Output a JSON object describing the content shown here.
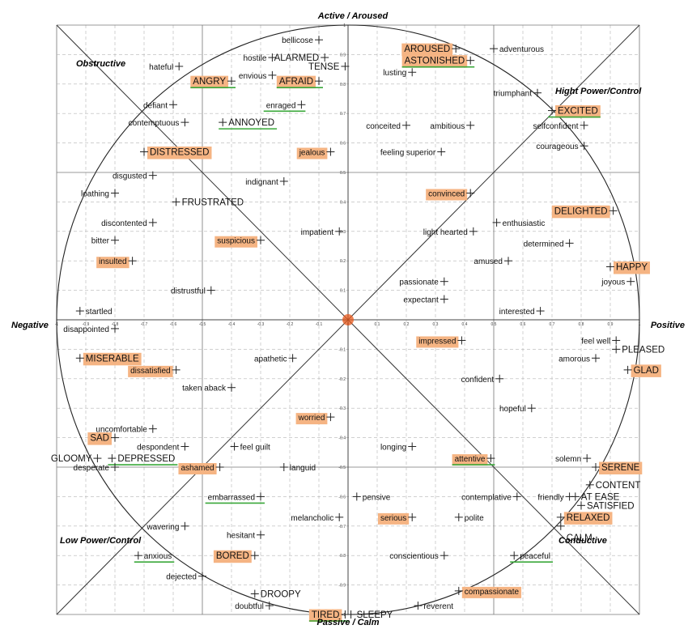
{
  "axes": {
    "top": "Active / Aroused",
    "bottom": "Passive / Calm",
    "left": "Negative",
    "right": "Positive"
  },
  "regions": {
    "top_left": "Obstructive",
    "top_right": "Hight Power/Control",
    "bottom_left": "Low Power/Control",
    "bottom_right": "Conductive"
  },
  "x_ticks": [
    "-1",
    "-0.9",
    "-0.8",
    "-0.7",
    "-0.6",
    "-0.5",
    "-0.4",
    "-0.3",
    "-0.2",
    "-0.1",
    "0",
    "0.1",
    "0.2",
    "0.3",
    "0.4",
    "0.5",
    "0.6",
    "0.7",
    "0.8",
    "0.9",
    "1"
  ],
  "y_ticks": [
    "1",
    "0.9",
    "0.8",
    "0.7",
    "0.6",
    "0.5",
    "0.4",
    "0.3",
    "0.2",
    "0.1",
    "0",
    "-0.1",
    "-0.2",
    "-0.3",
    "-0.4",
    "-0.5",
    "-0.6",
    "-0.7",
    "-0.8",
    "-0.9",
    "-1"
  ],
  "colors": {
    "highlight": "#f5b483",
    "underline": "#3aa83a",
    "grid": "#888888",
    "axis": "#444444",
    "center": "#e85a1c"
  },
  "chart_data": {
    "type": "scatter",
    "xlim": [
      -1,
      1
    ],
    "ylim": [
      -1,
      1
    ],
    "points": [
      {
        "label": "bellicose",
        "x": -0.1,
        "y": 0.95,
        "side": "left",
        "style": "small"
      },
      {
        "label": "hostile",
        "x": -0.26,
        "y": 0.89,
        "side": "left",
        "style": "small"
      },
      {
        "label": "ALARMED",
        "x": -0.08,
        "y": 0.89,
        "side": "left",
        "style": "caps"
      },
      {
        "label": "TENSE",
        "x": -0.01,
        "y": 0.86,
        "side": "left",
        "style": "caps"
      },
      {
        "label": "envious",
        "x": -0.26,
        "y": 0.83,
        "side": "left",
        "style": "small"
      },
      {
        "label": "hateful",
        "x": -0.58,
        "y": 0.86,
        "side": "left",
        "style": "small"
      },
      {
        "label": "ANGRY",
        "x": -0.4,
        "y": 0.81,
        "side": "left",
        "style": "caps",
        "hl": true,
        "ul": true
      },
      {
        "label": "AFRAID",
        "x": -0.1,
        "y": 0.81,
        "side": "left",
        "style": "caps",
        "hl": true,
        "ul": true
      },
      {
        "label": "defiant",
        "x": -0.6,
        "y": 0.73,
        "side": "left",
        "style": "small"
      },
      {
        "label": "enraged",
        "x": -0.16,
        "y": 0.73,
        "side": "left",
        "style": "small",
        "ul": true
      },
      {
        "label": "contemptuous",
        "x": -0.56,
        "y": 0.67,
        "side": "left",
        "style": "small"
      },
      {
        "label": "ANNOYED",
        "x": -0.43,
        "y": 0.67,
        "side": "right",
        "style": "caps",
        "ul": true
      },
      {
        "label": "DISTRESSED",
        "x": -0.7,
        "y": 0.57,
        "side": "right",
        "style": "caps",
        "hl": true
      },
      {
        "label": "jealous",
        "x": -0.06,
        "y": 0.57,
        "side": "left",
        "style": "small",
        "hl": true
      },
      {
        "label": "disgusted",
        "x": -0.67,
        "y": 0.49,
        "side": "left",
        "style": "small"
      },
      {
        "label": "indignant",
        "x": -0.22,
        "y": 0.47,
        "side": "left",
        "style": "small"
      },
      {
        "label": "loathing",
        "x": -0.8,
        "y": 0.43,
        "side": "left",
        "style": "small"
      },
      {
        "label": "FRUSTRATED",
        "x": -0.59,
        "y": 0.4,
        "side": "right",
        "style": "caps"
      },
      {
        "label": "discontented",
        "x": -0.67,
        "y": 0.33,
        "side": "left",
        "style": "small"
      },
      {
        "label": "bitter",
        "x": -0.8,
        "y": 0.27,
        "side": "left",
        "style": "small"
      },
      {
        "label": "suspicious",
        "x": -0.3,
        "y": 0.27,
        "side": "left",
        "style": "small",
        "hl": true
      },
      {
        "label": "impatient",
        "x": -0.03,
        "y": 0.3,
        "side": "left",
        "style": "small"
      },
      {
        "label": "insulted",
        "x": -0.74,
        "y": 0.2,
        "side": "left",
        "style": "small",
        "hl": true
      },
      {
        "label": "distrustful",
        "x": -0.47,
        "y": 0.1,
        "side": "left",
        "style": "small"
      },
      {
        "label": "startled",
        "x": -0.92,
        "y": 0.03,
        "side": "right",
        "style": "small"
      },
      {
        "label": "disappointed",
        "x": -0.8,
        "y": -0.03,
        "side": "left",
        "style": "small"
      },
      {
        "label": "MISERABLE",
        "x": -0.92,
        "y": -0.13,
        "side": "right",
        "style": "caps",
        "hl": true
      },
      {
        "label": "dissatisfied",
        "x": -0.59,
        "y": -0.17,
        "side": "left",
        "style": "small",
        "hl": true
      },
      {
        "label": "apathetic",
        "x": -0.19,
        "y": -0.13,
        "side": "left",
        "style": "small"
      },
      {
        "label": "taken aback",
        "x": -0.4,
        "y": -0.23,
        "side": "left",
        "style": "small"
      },
      {
        "label": "worried",
        "x": -0.06,
        "y": -0.33,
        "side": "left",
        "style": "small",
        "hl": true
      },
      {
        "label": "uncomfortable",
        "x": -0.67,
        "y": -0.37,
        "side": "left",
        "style": "small"
      },
      {
        "label": "SAD",
        "x": -0.8,
        "y": -0.4,
        "side": "left",
        "style": "caps",
        "hl": true
      },
      {
        "label": "despondent",
        "x": -0.56,
        "y": -0.43,
        "side": "left",
        "style": "small"
      },
      {
        "label": "feel guilt",
        "x": -0.39,
        "y": -0.43,
        "side": "right",
        "style": "small"
      },
      {
        "label": "GLOOMY",
        "x": -0.86,
        "y": -0.47,
        "side": "left",
        "style": "caps"
      },
      {
        "label": "DEPRESSED",
        "x": -0.81,
        "y": -0.47,
        "side": "right",
        "style": "caps",
        "ul": true
      },
      {
        "label": "desperate",
        "x": -0.8,
        "y": -0.5,
        "side": "left",
        "style": "small"
      },
      {
        "label": "ashamed",
        "x": -0.44,
        "y": -0.5,
        "side": "left",
        "style": "small",
        "hl": true
      },
      {
        "label": "languid",
        "x": -0.22,
        "y": -0.5,
        "side": "right",
        "style": "small"
      },
      {
        "label": "embarrassed",
        "x": -0.3,
        "y": -0.6,
        "side": "left",
        "style": "small",
        "ul": true
      },
      {
        "label": "melancholic",
        "x": -0.03,
        "y": -0.67,
        "side": "left",
        "style": "small"
      },
      {
        "label": "wavering",
        "x": -0.56,
        "y": -0.7,
        "side": "left",
        "style": "small"
      },
      {
        "label": "hesitant",
        "x": -0.3,
        "y": -0.73,
        "side": "left",
        "style": "small"
      },
      {
        "label": "anxious",
        "x": -0.72,
        "y": -0.8,
        "side": "right",
        "style": "small",
        "ul": true
      },
      {
        "label": "BORED",
        "x": -0.32,
        "y": -0.8,
        "side": "left",
        "style": "caps",
        "hl": true
      },
      {
        "label": "dejected",
        "x": -0.5,
        "y": -0.87,
        "side": "left",
        "style": "small"
      },
      {
        "label": "DROOPY",
        "x": -0.32,
        "y": -0.93,
        "side": "right",
        "style": "caps"
      },
      {
        "label": "doubtful",
        "x": -0.27,
        "y": -0.97,
        "side": "left",
        "style": "small"
      },
      {
        "label": "TIRED",
        "x": -0.01,
        "y": -1.0,
        "side": "left",
        "style": "caps",
        "hl": true,
        "ul": true
      },
      {
        "label": "SLEEPY",
        "x": 0.01,
        "y": -1.0,
        "side": "right",
        "style": "caps"
      },
      {
        "label": "AROUSED",
        "x": 0.37,
        "y": 0.92,
        "side": "left",
        "style": "caps",
        "hl": true
      },
      {
        "label": "ASTONISHED",
        "x": 0.42,
        "y": 0.88,
        "side": "left",
        "style": "caps",
        "hl": true,
        "ul": true
      },
      {
        "label": "adventurous",
        "x": 0.5,
        "y": 0.92,
        "side": "right",
        "style": "small"
      },
      {
        "label": "lusting",
        "x": 0.22,
        "y": 0.84,
        "side": "left",
        "style": "small"
      },
      {
        "label": "triumphant",
        "x": 0.65,
        "y": 0.77,
        "side": "left",
        "style": "small"
      },
      {
        "label": "EXCITED",
        "x": 0.7,
        "y": 0.71,
        "side": "right",
        "style": "caps",
        "hl": true,
        "ul": true
      },
      {
        "label": "conceited",
        "x": 0.2,
        "y": 0.66,
        "side": "left",
        "style": "small"
      },
      {
        "label": "ambitious",
        "x": 0.42,
        "y": 0.66,
        "side": "left",
        "style": "small"
      },
      {
        "label": "selfconfident",
        "x": 0.81,
        "y": 0.66,
        "side": "left",
        "style": "small"
      },
      {
        "label": "courageous",
        "x": 0.81,
        "y": 0.59,
        "side": "left",
        "style": "small"
      },
      {
        "label": "feeling superior",
        "x": 0.32,
        "y": 0.57,
        "side": "left",
        "style": "small"
      },
      {
        "label": "convinced",
        "x": 0.42,
        "y": 0.43,
        "side": "left",
        "style": "small",
        "hl": true
      },
      {
        "label": "DELIGHTED",
        "x": 0.91,
        "y": 0.37,
        "side": "left",
        "style": "caps",
        "hl": true
      },
      {
        "label": "enthusiastic",
        "x": 0.51,
        "y": 0.33,
        "side": "right",
        "style": "small"
      },
      {
        "label": "light hearted",
        "x": 0.43,
        "y": 0.3,
        "side": "left",
        "style": "small"
      },
      {
        "label": "determined",
        "x": 0.76,
        "y": 0.26,
        "side": "left",
        "style": "small"
      },
      {
        "label": "HAPPY",
        "x": 0.9,
        "y": 0.18,
        "side": "right",
        "style": "caps",
        "hl": true
      },
      {
        "label": "amused",
        "x": 0.55,
        "y": 0.2,
        "side": "left",
        "style": "small"
      },
      {
        "label": "passionate",
        "x": 0.33,
        "y": 0.13,
        "side": "left",
        "style": "small"
      },
      {
        "label": "joyous",
        "x": 0.97,
        "y": 0.13,
        "side": "left",
        "style": "small"
      },
      {
        "label": "expectant",
        "x": 0.33,
        "y": 0.07,
        "side": "left",
        "style": "small"
      },
      {
        "label": "interested",
        "x": 0.66,
        "y": 0.03,
        "side": "left",
        "style": "small"
      },
      {
        "label": "impressed",
        "x": 0.39,
        "y": -0.07,
        "side": "left",
        "style": "small",
        "hl": true
      },
      {
        "label": "feel well",
        "x": 0.92,
        "y": -0.07,
        "side": "left",
        "style": "small"
      },
      {
        "label": "PLEASED",
        "x": 0.92,
        "y": -0.1,
        "side": "right",
        "style": "caps"
      },
      {
        "label": "amorous",
        "x": 0.85,
        "y": -0.13,
        "side": "left",
        "style": "small"
      },
      {
        "label": "GLAD",
        "x": 0.96,
        "y": -0.17,
        "side": "right",
        "style": "caps",
        "hl": true
      },
      {
        "label": "confident",
        "x": 0.52,
        "y": -0.2,
        "side": "left",
        "style": "small"
      },
      {
        "label": "hopeful",
        "x": 0.63,
        "y": -0.3,
        "side": "left",
        "style": "small"
      },
      {
        "label": "longing",
        "x": 0.22,
        "y": -0.43,
        "side": "left",
        "style": "small"
      },
      {
        "label": "attentive",
        "x": 0.49,
        "y": -0.47,
        "side": "left",
        "style": "small",
        "hl": true,
        "ul": true
      },
      {
        "label": "solemn",
        "x": 0.82,
        "y": -0.47,
        "side": "left",
        "style": "small"
      },
      {
        "label": "SERENE",
        "x": 0.85,
        "y": -0.5,
        "side": "right",
        "style": "caps",
        "hl": true
      },
      {
        "label": "CONTENT",
        "x": 0.83,
        "y": -0.56,
        "side": "right",
        "style": "caps"
      },
      {
        "label": "pensive",
        "x": 0.03,
        "y": -0.6,
        "side": "right",
        "style": "small"
      },
      {
        "label": "contemplative",
        "x": 0.58,
        "y": -0.6,
        "side": "left",
        "style": "small"
      },
      {
        "label": "friendly",
        "x": 0.76,
        "y": -0.6,
        "side": "left",
        "style": "small"
      },
      {
        "label": "AT EASE",
        "x": 0.78,
        "y": -0.6,
        "side": "right",
        "style": "caps"
      },
      {
        "label": "SATISFIED",
        "x": 0.8,
        "y": -0.63,
        "side": "right",
        "style": "caps"
      },
      {
        "label": "serious",
        "x": 0.22,
        "y": -0.67,
        "side": "left",
        "style": "small",
        "hl": true
      },
      {
        "label": "polite",
        "x": 0.38,
        "y": -0.67,
        "side": "right",
        "style": "small"
      },
      {
        "label": "RELAXED",
        "x": 0.73,
        "y": -0.67,
        "side": "right",
        "style": "caps",
        "hl": true
      },
      {
        "label": "CALM",
        "x": 0.73,
        "y": -0.7,
        "side": "right",
        "style": "caps",
        "dy": 14
      },
      {
        "label": "conscientious",
        "x": 0.33,
        "y": -0.8,
        "side": "left",
        "style": "small"
      },
      {
        "label": "peaceful",
        "x": 0.57,
        "y": -0.8,
        "side": "right",
        "style": "small",
        "ul": true
      },
      {
        "label": "compassionate",
        "x": 0.38,
        "y": -0.92,
        "side": "right",
        "style": "small",
        "hl": true
      },
      {
        "label": "reverent",
        "x": 0.24,
        "y": -0.97,
        "side": "right",
        "style": "small"
      }
    ]
  }
}
